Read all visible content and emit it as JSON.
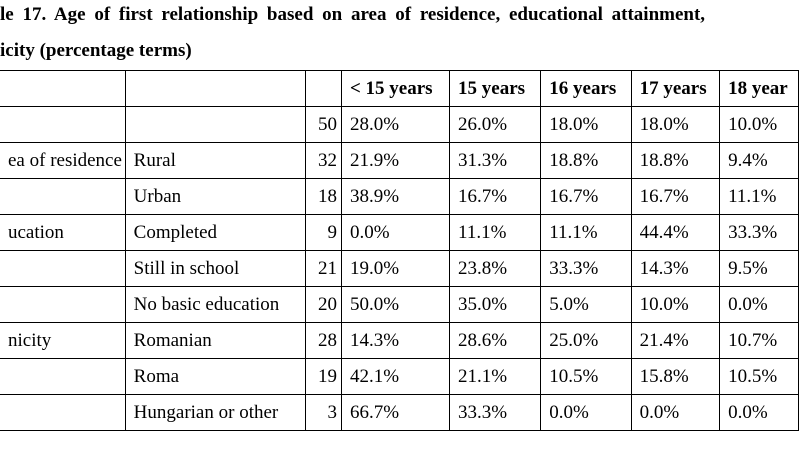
{
  "title_lines": [
    "le 17. Age of first relationship based on area of residence, educational attainment,",
    "icity (percentage terms)"
  ],
  "table": {
    "columns": [
      "< 15 years",
      "15 years",
      "16 years",
      "17 years",
      "18 year"
    ],
    "rows": [
      {
        "n": "50",
        "values": [
          "28.0%",
          "26.0%",
          "18.0%",
          "18.0%",
          "10.0%"
        ]
      },
      {
        "group": "ea of residence",
        "sub": "Rural",
        "n": "32",
        "values": [
          "21.9%",
          "31.3%",
          "18.8%",
          "18.8%",
          "9.4%"
        ]
      },
      {
        "sub": "Urban",
        "n": "18",
        "values": [
          "38.9%",
          "16.7%",
          "16.7%",
          "16.7%",
          "11.1%"
        ]
      },
      {
        "group": "ucation",
        "sub": "Completed",
        "n": "9",
        "values": [
          "0.0%",
          "11.1%",
          "11.1%",
          "44.4%",
          "33.3%"
        ]
      },
      {
        "sub": "Still in school",
        "n": "21",
        "values": [
          "19.0%",
          "23.8%",
          "33.3%",
          "14.3%",
          "9.5%"
        ]
      },
      {
        "sub": "No basic education",
        "n": "20",
        "values": [
          "50.0%",
          "35.0%",
          "5.0%",
          "10.0%",
          "0.0%"
        ]
      },
      {
        "group": "nicity",
        "sub": "Romanian",
        "n": "28",
        "values": [
          "14.3%",
          "28.6%",
          "25.0%",
          "21.4%",
          "10.7%"
        ]
      },
      {
        "sub": "Roma",
        "n": "19",
        "values": [
          "42.1%",
          "21.1%",
          "10.5%",
          "15.8%",
          "10.5%"
        ]
      },
      {
        "sub": "Hungarian or other",
        "n": "3",
        "values": [
          "66.7%",
          "33.3%",
          "0.0%",
          "0.0%",
          "0.0%"
        ]
      }
    ]
  }
}
